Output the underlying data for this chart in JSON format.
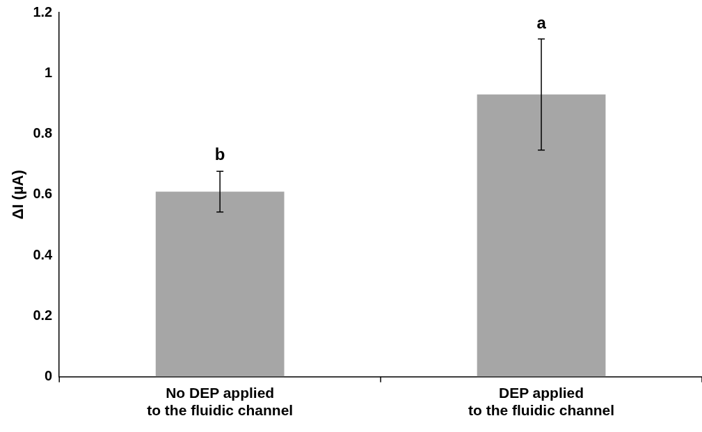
{
  "chart_data": {
    "type": "bar",
    "ylabel": "ΔI (µA)",
    "categories": [
      "No DEP applied\nto the fluidic channel",
      "DEP applied\nto the fluidic channel"
    ],
    "values": [
      0.61,
      0.93
    ],
    "color": "#a6a6a6",
    "errors": [
      0.067,
      0.183
    ],
    "ylim": [
      0,
      1.2
    ],
    "yticks": [
      0,
      0.2,
      0.4,
      0.6,
      0.8,
      1,
      1.2
    ],
    "grid": false,
    "legend": false,
    "annotations": [
      {
        "text": "b",
        "x": "No DEP applied\nto the fluidic channel",
        "y": 0.678
      },
      {
        "text": "a",
        "x": "DEP applied\nto the fluidic channel",
        "y": 1.113
      }
    ]
  }
}
